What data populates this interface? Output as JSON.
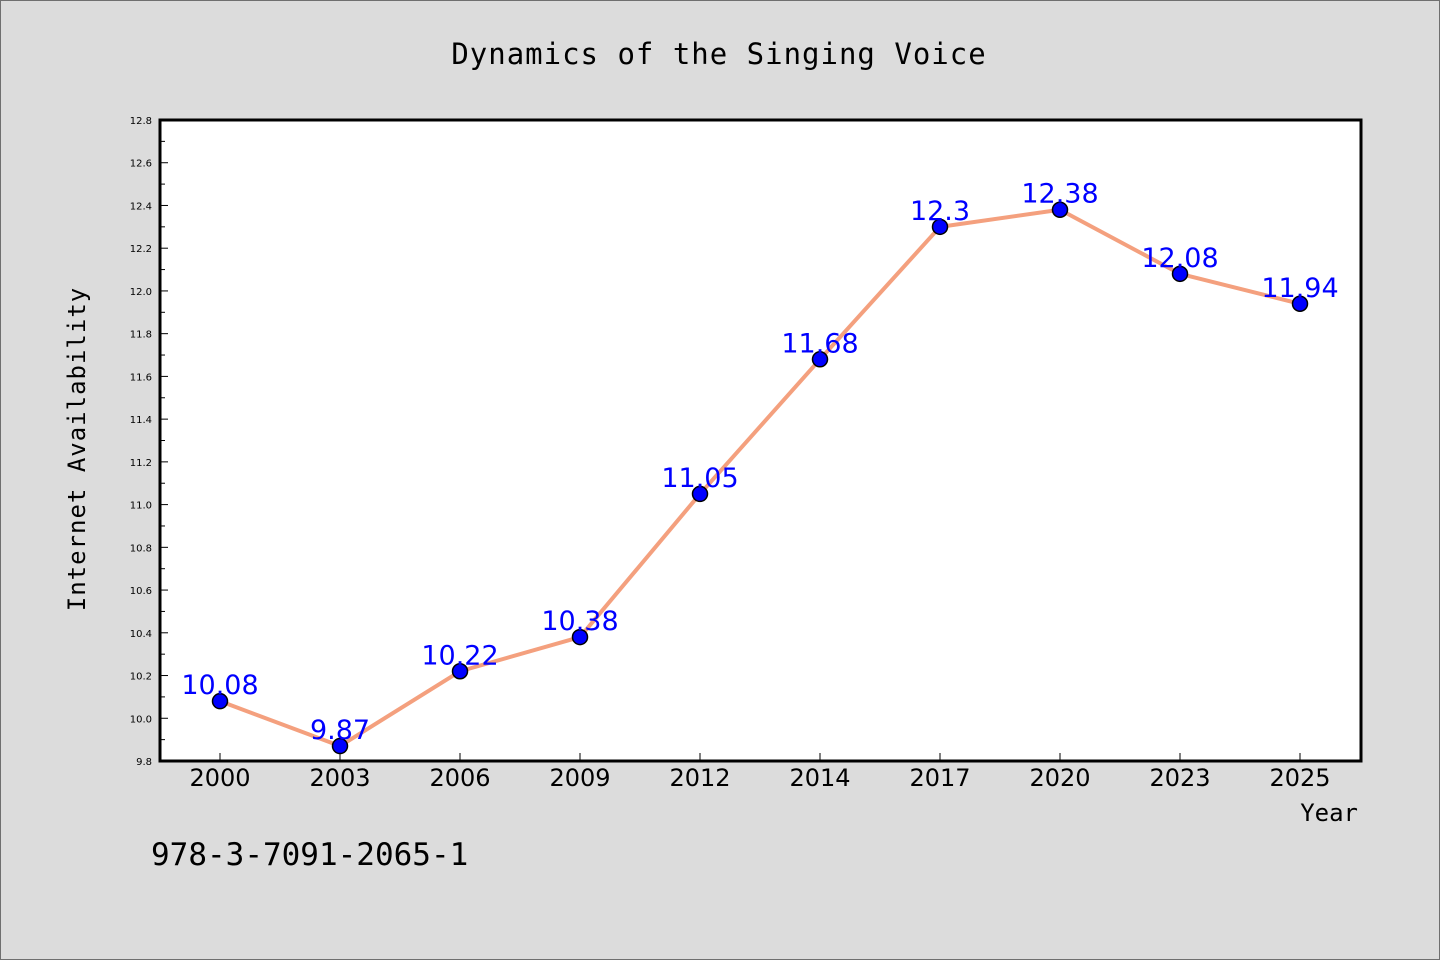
{
  "chart_data": {
    "type": "line",
    "title": "Dynamics of the Singing Voice",
    "xlabel": "Year",
    "ylabel": "Internet Availability",
    "categories": [
      "2000",
      "2003",
      "2006",
      "2009",
      "2012",
      "2014",
      "2017",
      "2020",
      "2023",
      "2025"
    ],
    "series": [
      {
        "values": [
          10.08,
          9.87,
          10.22,
          10.38,
          11.05,
          11.68,
          12.3,
          12.38,
          12.08,
          11.94
        ],
        "labels": [
          "10.08",
          "9.87",
          "10.22",
          "10.38",
          "11.05",
          "11.68",
          "12.3",
          "12.38",
          "12.08",
          "11.94"
        ],
        "line_color": "#f4a07e",
        "marker_color": "#0000ff",
        "label_color": "#0000ff"
      }
    ],
    "ylim": [
      9.8,
      12.8
    ],
    "yticks": [
      "9.8",
      "10.0",
      "10.2",
      "10.4",
      "10.6",
      "10.8",
      "11.0",
      "11.2",
      "11.4",
      "11.6",
      "11.8",
      "12.0",
      "12.2",
      "12.4",
      "12.6",
      "12.8"
    ],
    "grid": false,
    "legend": false,
    "background_color": "#dcdcdc",
    "plot_background": "#ffffff"
  },
  "annotation": "978-3-7091-2065-1"
}
